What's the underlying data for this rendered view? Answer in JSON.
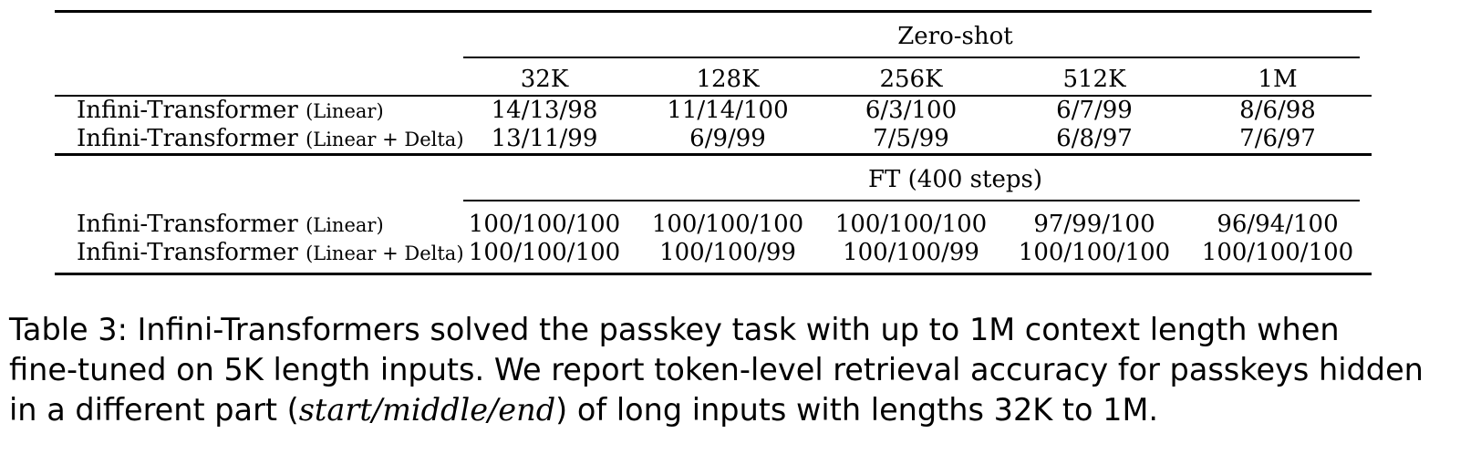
{
  "table": {
    "columns": [
      "32K",
      "128K",
      "256K",
      "512K",
      "1M"
    ],
    "groups": [
      {
        "heading": "Zero-shot",
        "rows": [
          {
            "model": "Infini-Transformer",
            "variant": "(Linear)",
            "values": [
              "14/13/98",
              "11/14/100",
              "6/3/100",
              "6/7/99",
              "8/6/98"
            ]
          },
          {
            "model": "Infini-Transformer",
            "variant": "(Linear + Delta)",
            "values": [
              "13/11/99",
              "6/9/99",
              "7/5/99",
              "6/8/97",
              "7/6/97"
            ]
          }
        ]
      },
      {
        "heading": "FT (400 steps)",
        "rows": [
          {
            "model": "Infini-Transformer",
            "variant": "(Linear)",
            "values": [
              "100/100/100",
              "100/100/100",
              "100/100/100",
              "97/99/100",
              "96/94/100"
            ]
          },
          {
            "model": "Infini-Transformer",
            "variant": "(Linear + Delta)",
            "values": [
              "100/100/100",
              "100/100/99",
              "100/100/99",
              "100/100/100",
              "100/100/100"
            ]
          }
        ]
      }
    ]
  },
  "caption": {
    "line1": "Table 3: Infini-Transformers solved the passkey task with up to 1M context length when",
    "line2": "fine-tuned on 5K length inputs. We report token-level retrieval accuracy for passkeys hidden",
    "line3_pre": "in a different part (",
    "line3_em": "start/middle/end",
    "line3_post": ") of long inputs with lengths 32K to 1M."
  }
}
